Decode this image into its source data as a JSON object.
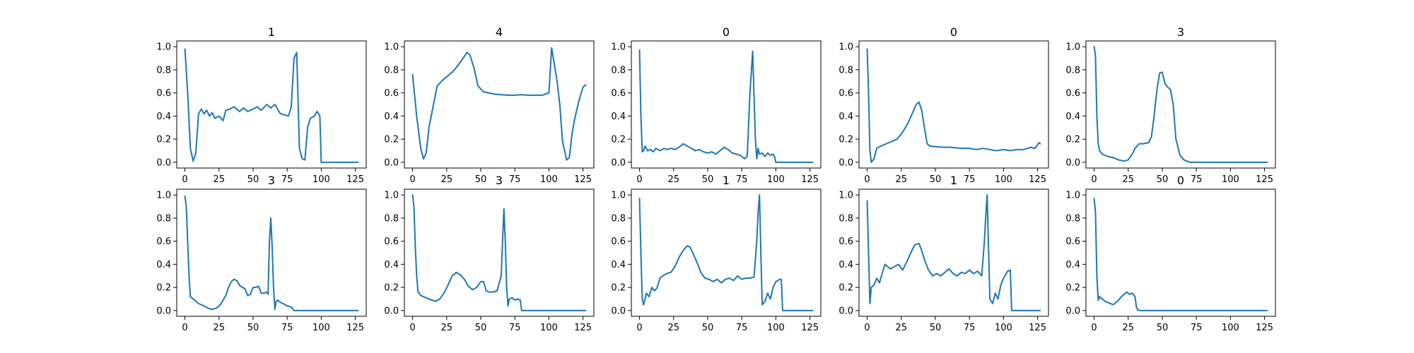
{
  "figure": {
    "line_color": "#1f77b4",
    "background": "#ffffff"
  },
  "chart_data": [
    {
      "type": "line",
      "title": "1",
      "xlim": [
        -6,
        133
      ],
      "ylim": [
        -0.05,
        1.05
      ],
      "xticks": [
        "0",
        "25",
        "50",
        "75",
        "100",
        "125"
      ],
      "yticks": [
        "0.0",
        "0.2",
        "0.4",
        "0.6",
        "0.8",
        "1.0"
      ],
      "series": [
        {
          "x": [
            0,
            2,
            4,
            6,
            8,
            10,
            12,
            14,
            16,
            18,
            20,
            22,
            25,
            28,
            30,
            33,
            36,
            40,
            43,
            46,
            50,
            53,
            56,
            60,
            63,
            66,
            70,
            73,
            76,
            78,
            80,
            82,
            84,
            86,
            88,
            90,
            92,
            95,
            97,
            99,
            100,
            127
          ],
          "y": [
            0.98,
            0.6,
            0.12,
            0.01,
            0.08,
            0.42,
            0.46,
            0.42,
            0.45,
            0.4,
            0.43,
            0.38,
            0.4,
            0.36,
            0.45,
            0.46,
            0.48,
            0.44,
            0.47,
            0.44,
            0.46,
            0.48,
            0.45,
            0.5,
            0.47,
            0.5,
            0.42,
            0.41,
            0.4,
            0.48,
            0.9,
            0.95,
            0.12,
            0.03,
            0.02,
            0.3,
            0.38,
            0.4,
            0.44,
            0.4,
            0.0,
            0.0
          ]
        }
      ]
    },
    {
      "type": "line",
      "title": "4",
      "xlim": [
        -6,
        133
      ],
      "ylim": [
        -0.05,
        1.05
      ],
      "xticks": [
        "0",
        "25",
        "50",
        "75",
        "100",
        "125"
      ],
      "yticks": [
        "0.0",
        "0.2",
        "0.4",
        "0.6",
        "0.8",
        "1.0"
      ],
      "series": [
        {
          "x": [
            0,
            3,
            6,
            8,
            10,
            12,
            15,
            18,
            22,
            26,
            30,
            34,
            37,
            40,
            42,
            45,
            48,
            52,
            56,
            60,
            65,
            70,
            75,
            80,
            85,
            90,
            95,
            100,
            102,
            104,
            106,
            108,
            110,
            113,
            115,
            117,
            119,
            122,
            125,
            127
          ],
          "y": [
            0.76,
            0.4,
            0.12,
            0.03,
            0.08,
            0.3,
            0.48,
            0.66,
            0.71,
            0.75,
            0.79,
            0.85,
            0.9,
            0.95,
            0.93,
            0.82,
            0.66,
            0.61,
            0.6,
            0.59,
            0.585,
            0.58,
            0.58,
            0.585,
            0.58,
            0.58,
            0.58,
            0.6,
            0.99,
            0.85,
            0.7,
            0.5,
            0.18,
            0.02,
            0.04,
            0.25,
            0.38,
            0.53,
            0.65,
            0.67
          ]
        }
      ]
    },
    {
      "type": "line",
      "title": "0",
      "xlim": [
        -6,
        133
      ],
      "ylim": [
        -0.05,
        1.05
      ],
      "xticks": [
        "0",
        "25",
        "50",
        "75",
        "100",
        "125"
      ],
      "yticks": [
        "0.0",
        "0.2",
        "0.4",
        "0.6",
        "0.8",
        "1.0"
      ],
      "series": [
        {
          "x": [
            0,
            1,
            2,
            3,
            4,
            6,
            8,
            10,
            12,
            15,
            18,
            20,
            23,
            26,
            29,
            32,
            35,
            38,
            41,
            44,
            47,
            50,
            53,
            56,
            59,
            62,
            65,
            68,
            71,
            74,
            77,
            79,
            81,
            83,
            85,
            86,
            87,
            88,
            90,
            92,
            94,
            96,
            98,
            99,
            100,
            127
          ],
          "y": [
            0.97,
            0.4,
            0.09,
            0.1,
            0.14,
            0.1,
            0.11,
            0.09,
            0.12,
            0.1,
            0.12,
            0.11,
            0.12,
            0.11,
            0.13,
            0.16,
            0.14,
            0.12,
            0.1,
            0.11,
            0.09,
            0.08,
            0.09,
            0.07,
            0.1,
            0.13,
            0.11,
            0.08,
            0.07,
            0.06,
            0.03,
            0.05,
            0.6,
            0.96,
            0.2,
            0.03,
            0.12,
            0.07,
            0.08,
            0.05,
            0.08,
            0.06,
            0.07,
            0.05,
            0.0,
            0.0
          ]
        }
      ]
    },
    {
      "type": "line",
      "title": "0",
      "xlim": [
        -6,
        133
      ],
      "ylim": [
        -0.05,
        1.05
      ],
      "xticks": [
        "0",
        "25",
        "50",
        "75",
        "100",
        "125"
      ],
      "yticks": [
        "0.0",
        "0.2",
        "0.4",
        "0.6",
        "0.8",
        "1.0"
      ],
      "series": [
        {
          "x": [
            0,
            1,
            2,
            3,
            5,
            7,
            10,
            14,
            18,
            22,
            26,
            30,
            33,
            36,
            38,
            40,
            42,
            44,
            46,
            50,
            55,
            60,
            65,
            70,
            75,
            80,
            85,
            90,
            95,
            100,
            105,
            110,
            115,
            120,
            123,
            125,
            126,
            127
          ],
          "y": [
            0.98,
            0.6,
            0.1,
            0.0,
            0.03,
            0.12,
            0.14,
            0.16,
            0.18,
            0.2,
            0.26,
            0.34,
            0.42,
            0.5,
            0.52,
            0.45,
            0.3,
            0.16,
            0.14,
            0.135,
            0.13,
            0.13,
            0.125,
            0.12,
            0.12,
            0.11,
            0.12,
            0.11,
            0.1,
            0.11,
            0.1,
            0.11,
            0.11,
            0.13,
            0.12,
            0.15,
            0.17,
            0.16
          ]
        }
      ]
    },
    {
      "type": "line",
      "title": "3",
      "xlim": [
        -6,
        133
      ],
      "ylim": [
        -0.05,
        1.05
      ],
      "xticks": [
        "0",
        "25",
        "50",
        "75",
        "100",
        "125"
      ],
      "yticks": [
        "0.0",
        "0.2",
        "0.4",
        "0.6",
        "0.8",
        "1.0"
      ],
      "series": [
        {
          "x": [
            0,
            1,
            2,
            3,
            4,
            6,
            10,
            14,
            18,
            22,
            25,
            28,
            30,
            33,
            36,
            40,
            42,
            44,
            46,
            48,
            50,
            52,
            54,
            56,
            58,
            60,
            63,
            66,
            68,
            70,
            127
          ],
          "y": [
            1.0,
            0.92,
            0.4,
            0.16,
            0.1,
            0.07,
            0.05,
            0.04,
            0.02,
            0.01,
            0.02,
            0.07,
            0.12,
            0.16,
            0.16,
            0.17,
            0.22,
            0.4,
            0.62,
            0.77,
            0.78,
            0.68,
            0.65,
            0.63,
            0.5,
            0.2,
            0.06,
            0.02,
            0.01,
            0.0,
            0.0
          ]
        }
      ]
    },
    {
      "type": "line",
      "title": "3",
      "xlim": [
        -6,
        133
      ],
      "ylim": [
        -0.05,
        1.05
      ],
      "xticks": [
        "0",
        "25",
        "50",
        "75",
        "100",
        "125"
      ],
      "yticks": [
        "0.0",
        "0.2",
        "0.4",
        "0.6",
        "0.8",
        "1.0"
      ],
      "series": [
        {
          "x": [
            0,
            1,
            2,
            3,
            4,
            6,
            10,
            14,
            17,
            20,
            23,
            26,
            28,
            30,
            32,
            34,
            36,
            38,
            40,
            42,
            44,
            46,
            48,
            50,
            52,
            54,
            56,
            58,
            60,
            61,
            62,
            63,
            64,
            65,
            66,
            67,
            68,
            70,
            72,
            75,
            78,
            80,
            127
          ],
          "y": [
            0.99,
            0.9,
            0.6,
            0.3,
            0.12,
            0.1,
            0.06,
            0.04,
            0.02,
            0.01,
            0.02,
            0.05,
            0.09,
            0.13,
            0.2,
            0.25,
            0.27,
            0.26,
            0.22,
            0.2,
            0.19,
            0.13,
            0.14,
            0.2,
            0.2,
            0.21,
            0.15,
            0.15,
            0.16,
            0.14,
            0.6,
            0.8,
            0.55,
            0.2,
            0.01,
            0.08,
            0.09,
            0.07,
            0.06,
            0.04,
            0.03,
            0.0,
            0.0
          ]
        }
      ]
    },
    {
      "type": "line",
      "title": "3",
      "xlim": [
        -6,
        133
      ],
      "ylim": [
        -0.05,
        1.05
      ],
      "xticks": [
        "0",
        "25",
        "50",
        "75",
        "100",
        "125"
      ],
      "yticks": [
        "0.0",
        "0.2",
        "0.4",
        "0.6",
        "0.8",
        "1.0"
      ],
      "series": [
        {
          "x": [
            0,
            1,
            2,
            3,
            4,
            6,
            10,
            14,
            17,
            20,
            23,
            26,
            29,
            32,
            35,
            38,
            41,
            44,
            47,
            50,
            52,
            54,
            56,
            59,
            62,
            65,
            66,
            67,
            68,
            69,
            70,
            71,
            73,
            75,
            77,
            79,
            80,
            127
          ],
          "y": [
            1.0,
            0.9,
            0.55,
            0.3,
            0.16,
            0.13,
            0.11,
            0.09,
            0.08,
            0.1,
            0.15,
            0.22,
            0.3,
            0.33,
            0.31,
            0.27,
            0.21,
            0.18,
            0.2,
            0.25,
            0.25,
            0.17,
            0.16,
            0.16,
            0.17,
            0.3,
            0.6,
            0.88,
            0.6,
            0.2,
            0.04,
            0.1,
            0.11,
            0.09,
            0.1,
            0.09,
            0.0,
            0.0
          ]
        }
      ]
    },
    {
      "type": "line",
      "title": "1",
      "xlim": [
        -6,
        133
      ],
      "ylim": [
        -0.05,
        1.05
      ],
      "xticks": [
        "0",
        "25",
        "50",
        "75",
        "100",
        "125"
      ],
      "yticks": [
        "0.0",
        "0.2",
        "0.4",
        "0.6",
        "0.8",
        "1.0"
      ],
      "series": [
        {
          "x": [
            0,
            1,
            2,
            3,
            5,
            7,
            9,
            11,
            13,
            15,
            17,
            20,
            23,
            26,
            29,
            32,
            35,
            37,
            39,
            42,
            45,
            48,
            51,
            54,
            57,
            60,
            63,
            66,
            69,
            72,
            75,
            78,
            81,
            84,
            86,
            87,
            88,
            89,
            90,
            92,
            94,
            96,
            98,
            100,
            103,
            104,
            105,
            127
          ],
          "y": [
            0.97,
            0.5,
            0.1,
            0.05,
            0.15,
            0.12,
            0.2,
            0.17,
            0.2,
            0.28,
            0.3,
            0.32,
            0.33,
            0.38,
            0.46,
            0.52,
            0.56,
            0.55,
            0.5,
            0.42,
            0.33,
            0.28,
            0.27,
            0.25,
            0.27,
            0.24,
            0.27,
            0.28,
            0.26,
            0.3,
            0.27,
            0.28,
            0.28,
            0.29,
            0.6,
            0.85,
            1.0,
            0.5,
            0.05,
            0.08,
            0.15,
            0.1,
            0.2,
            0.25,
            0.27,
            0.27,
            0.0,
            0.0
          ]
        }
      ]
    },
    {
      "type": "line",
      "title": "1",
      "xlim": [
        -6,
        133
      ],
      "ylim": [
        -0.05,
        1.05
      ],
      "xticks": [
        "0",
        "25",
        "50",
        "75",
        "100",
        "125"
      ],
      "yticks": [
        "0.0",
        "0.2",
        "0.4",
        "0.6",
        "0.8",
        "1.0"
      ],
      "series": [
        {
          "x": [
            0,
            1,
            2,
            3,
            5,
            7,
            9,
            11,
            13,
            15,
            17,
            20,
            23,
            26,
            29,
            32,
            35,
            38,
            40,
            42,
            45,
            48,
            51,
            54,
            57,
            60,
            63,
            66,
            69,
            72,
            75,
            78,
            81,
            84,
            86,
            87,
            88,
            89,
            90,
            92,
            94,
            96,
            98,
            100,
            103,
            105,
            106,
            127
          ],
          "y": [
            0.95,
            0.5,
            0.06,
            0.2,
            0.22,
            0.28,
            0.24,
            0.32,
            0.4,
            0.38,
            0.36,
            0.38,
            0.4,
            0.35,
            0.42,
            0.5,
            0.57,
            0.58,
            0.52,
            0.44,
            0.35,
            0.3,
            0.32,
            0.3,
            0.33,
            0.36,
            0.32,
            0.3,
            0.33,
            0.32,
            0.35,
            0.32,
            0.34,
            0.3,
            0.6,
            0.82,
            1.0,
            0.55,
            0.1,
            0.06,
            0.15,
            0.1,
            0.22,
            0.28,
            0.34,
            0.35,
            0.0,
            0.0
          ]
        }
      ]
    },
    {
      "type": "line",
      "title": "0",
      "xlim": [
        -6,
        133
      ],
      "ylim": [
        -0.05,
        1.05
      ],
      "xticks": [
        "0",
        "25",
        "50",
        "75",
        "100",
        "125"
      ],
      "yticks": [
        "0.0",
        "0.2",
        "0.4",
        "0.6",
        "0.8",
        "1.0"
      ],
      "series": [
        {
          "x": [
            0,
            1,
            2,
            3,
            4,
            6,
            8,
            10,
            12,
            14,
            16,
            18,
            20,
            22,
            24,
            26,
            28,
            30,
            31,
            32,
            34,
            127
          ],
          "y": [
            0.97,
            0.85,
            0.3,
            0.09,
            0.12,
            0.1,
            0.08,
            0.07,
            0.06,
            0.05,
            0.07,
            0.09,
            0.12,
            0.14,
            0.16,
            0.14,
            0.15,
            0.12,
            0.03,
            0.005,
            0.0,
            0.0
          ]
        }
      ]
    }
  ]
}
